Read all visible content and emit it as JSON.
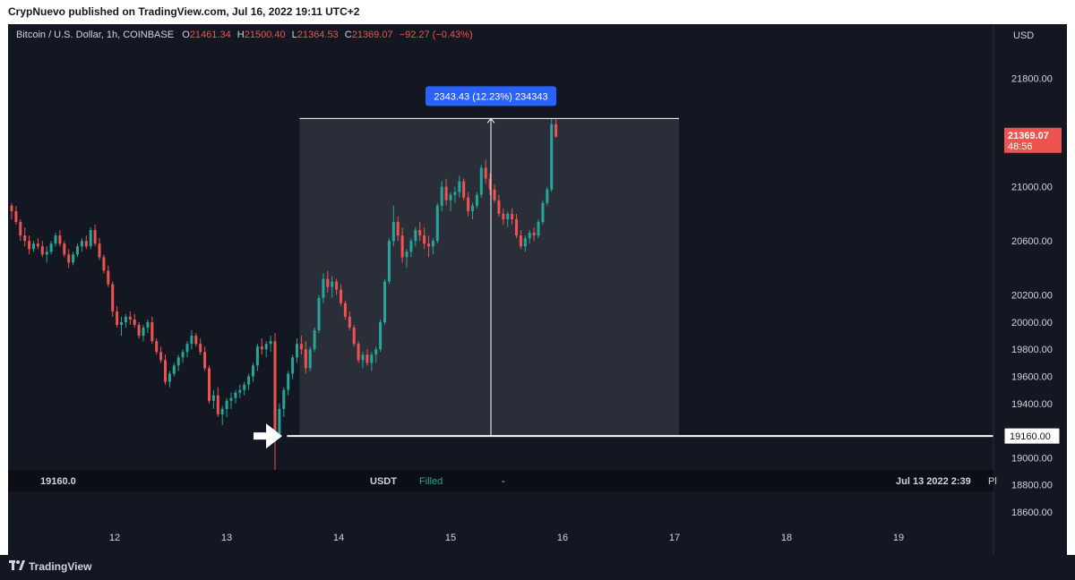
{
  "header": {
    "published_text": "CrypNuevo published on TradingView.com, Jul 16, 2022 19:11 UTC+2"
  },
  "legend": {
    "symbol": "Bitcoin / U.S. Dollar, 1h, COINBASE",
    "open_label": "O",
    "open": "21461.34",
    "high_label": "H",
    "high": "21500.40",
    "low_label": "L",
    "low": "21364.53",
    "close_label": "C",
    "close": "21369.07",
    "change": "−92.27 (−0.43%)"
  },
  "price_axis": {
    "currency": "USD",
    "ticks": [
      "21800.00",
      "21000.00",
      "20600.00",
      "20200.00",
      "20000.00",
      "19800.00",
      "19600.00",
      "19400.00",
      "19000.00",
      "18800.00",
      "18600.00"
    ],
    "current_price": "21369.07",
    "countdown": "48:56",
    "line_price": "19160.00"
  },
  "measure": {
    "label": "2343.43 (12.23%) 234343"
  },
  "order_strip": {
    "price": "19160.0",
    "currency": "USDT",
    "status": "Filled",
    "dash": "-",
    "datetime": "Jul 13 2022 2:39",
    "trailing": "Pl"
  },
  "footer": {
    "brand": "TradingView"
  },
  "colors": {
    "background": "#131722",
    "up": "#26a69a",
    "down": "#ef5350",
    "measure_label_bg": "#2962ff",
    "filled_text": "#26a69a"
  },
  "chart_data": {
    "type": "candlestick",
    "title": "Bitcoin / U.S. Dollar, 1h, COINBASE",
    "xlabel": "",
    "ylabel": "USD",
    "x_ticks": [
      "12",
      "13",
      "14",
      "15",
      "16",
      "17",
      "18",
      "19"
    ],
    "ylim": [
      18500,
      22200
    ],
    "horizontal_line": 19160,
    "measure_range": {
      "from": 19160,
      "to": 21503.43,
      "change": "2343.43 (12.23%)"
    },
    "last_price": 21369.07,
    "candles": []
  }
}
